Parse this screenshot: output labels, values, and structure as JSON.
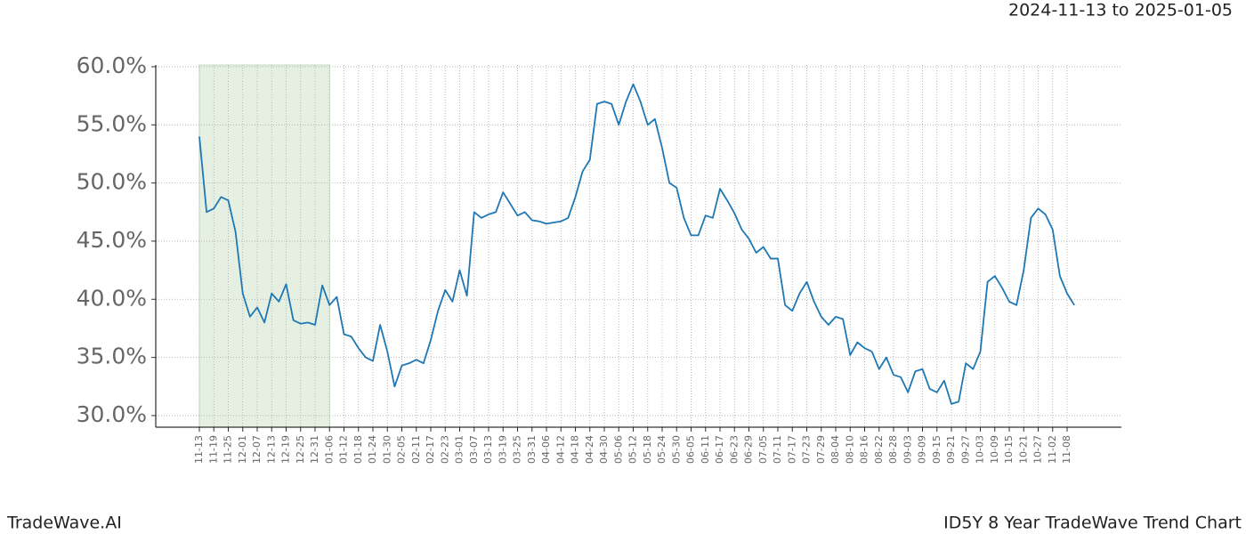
{
  "chart_data": {
    "type": "line",
    "title": "ID5Y 8 Year TradeWave Trend Chart",
    "subtitle": "2024-11-13 to 2025-01-05",
    "brand": "TradeWave.AI",
    "color": "#1f77b4",
    "highlight_color": "#e5f0e3",
    "highlight": [
      0,
      18
    ],
    "grid": true,
    "categories": [
      "11-13",
      null,
      "11-19",
      null,
      "11-25",
      null,
      "12-01",
      null,
      "12-07",
      null,
      "12-13",
      null,
      "12-19",
      null,
      "12-25",
      null,
      "12-31",
      null,
      "01-06",
      null,
      "01-12",
      null,
      "01-18",
      null,
      "01-24",
      null,
      "01-30",
      null,
      "02-05",
      null,
      "02-11",
      null,
      "02-17",
      null,
      "02-23",
      null,
      "03-01",
      null,
      "03-07",
      null,
      "03-13",
      null,
      "03-19",
      null,
      "03-25",
      null,
      "03-31",
      null,
      "04-06",
      null,
      "04-12",
      null,
      "04-18",
      null,
      "04-24",
      null,
      "04-30",
      null,
      "05-06",
      null,
      "05-12",
      null,
      "05-18",
      null,
      "05-24",
      null,
      "05-30",
      null,
      "06-05",
      null,
      "06-11",
      null,
      "06-17",
      null,
      "06-23",
      null,
      "06-29",
      null,
      "07-05",
      null,
      "07-11",
      null,
      "07-17",
      null,
      "07-23",
      null,
      "07-29",
      null,
      "08-04",
      null,
      "08-10",
      null,
      "08-16",
      null,
      "08-22",
      null,
      "08-28",
      null,
      "09-03",
      null,
      "09-09",
      null,
      "09-15",
      null,
      "09-21",
      null,
      "09-27",
      null,
      "10-03",
      null,
      "10-09",
      null,
      "10-15",
      null,
      "10-21",
      null,
      "10-27",
      null,
      "11-02",
      null,
      "11-08",
      null
    ],
    "values": [
      54.0,
      47.5,
      47.8,
      48.8,
      48.5,
      45.8,
      40.5,
      38.5,
      39.3,
      38.0,
      40.5,
      39.8,
      41.3,
      38.2,
      37.9,
      38.0,
      37.8,
      41.2,
      39.5,
      40.2,
      37.0,
      36.8,
      35.8,
      35.0,
      34.7,
      37.8,
      35.5,
      32.5,
      34.3,
      34.5,
      34.8,
      34.5,
      36.5,
      39.0,
      40.8,
      39.8,
      42.5,
      40.3,
      47.5,
      47.0,
      47.3,
      47.5,
      49.2,
      48.2,
      47.2,
      47.5,
      46.8,
      46.7,
      46.5,
      46.6,
      46.7,
      47.0,
      48.8,
      51.0,
      52.0,
      56.8,
      57.0,
      56.8,
      55.0,
      57.0,
      58.5,
      57.0,
      55.0,
      55.5,
      53.0,
      50.0,
      49.6,
      47.0,
      45.5,
      45.5,
      47.2,
      47.0,
      49.5,
      48.5,
      47.4,
      46.0,
      45.2,
      44.0,
      44.5,
      43.5,
      43.5,
      39.5,
      39.0,
      40.5,
      41.5,
      39.8,
      38.5,
      37.8,
      38.5,
      38.3,
      35.2,
      36.3,
      35.8,
      35.5,
      34.0,
      35.0,
      33.5,
      33.3,
      32.0,
      33.8,
      34.0,
      32.3,
      32.0,
      33.0,
      31.0,
      31.2,
      34.5,
      34.0,
      35.5,
      41.5,
      42.0,
      41.0,
      39.8,
      39.5,
      42.5,
      47.0,
      47.8,
      47.3,
      46.0,
      42.0,
      40.5,
      39.5
    ],
    "ylim": [
      29.0,
      60.15
    ],
    "yticks": [
      {
        "value": 30,
        "label": "30.0%"
      },
      {
        "value": 35,
        "label": "35.0%"
      },
      {
        "value": 40,
        "label": "40.0%"
      },
      {
        "value": 45,
        "label": "45.0%"
      },
      {
        "value": 50,
        "label": "50.0%"
      },
      {
        "value": 55,
        "label": "55.0%"
      },
      {
        "value": 60,
        "label": "60.0%"
      }
    ]
  }
}
